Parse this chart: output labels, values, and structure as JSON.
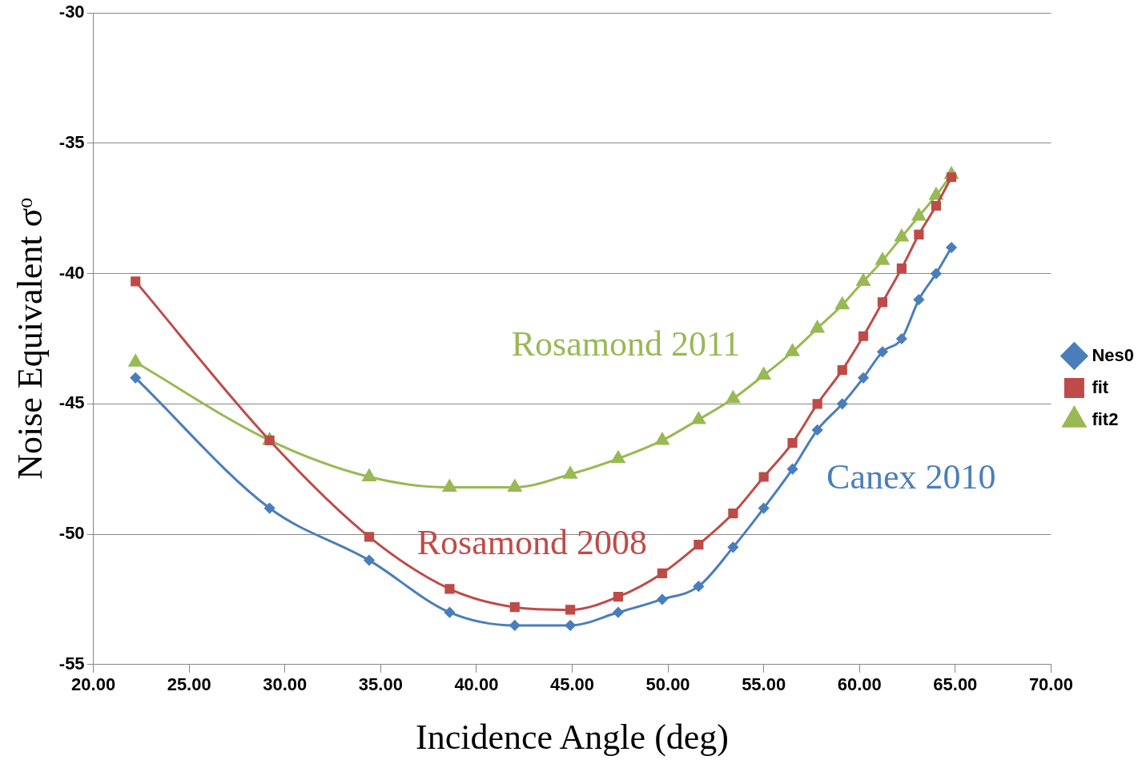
{
  "chart_data": {
    "type": "line",
    "xlabel": "Incidence Angle (deg)",
    "ylabel": "Noise Equivalent σᵒ",
    "x": [
      22.2,
      29.2,
      34.4,
      38.6,
      42.0,
      44.9,
      47.4,
      49.7,
      51.6,
      53.4,
      55.0,
      56.5,
      57.8,
      59.1,
      60.2,
      61.2,
      62.2,
      63.1,
      64.0,
      64.8
    ],
    "series": [
      {
        "name": "Nes0",
        "color": "#4a7ebb",
        "marker": "diamond",
        "values": [
          -44.0,
          -49.0,
          -51.0,
          -53.0,
          -53.5,
          -53.5,
          -53.0,
          -52.5,
          -52.0,
          -50.5,
          -49.0,
          -47.5,
          -46.0,
          -45.0,
          -44.0,
          -43.0,
          -42.5,
          -41.0,
          -40.0,
          -39.0
        ]
      },
      {
        "name": "fit",
        "color": "#be4b48",
        "marker": "square",
        "values": [
          -40.3,
          -46.4,
          -50.1,
          -52.1,
          -52.8,
          -52.9,
          -52.4,
          -51.5,
          -50.4,
          -49.2,
          -47.8,
          -46.5,
          -45.0,
          -43.7,
          -42.4,
          -41.1,
          -39.8,
          -38.5,
          -37.4,
          -36.3
        ]
      },
      {
        "name": "fit2",
        "color": "#98b954",
        "marker": "triangle",
        "values": [
          -43.4,
          -46.4,
          -47.8,
          -48.2,
          -48.2,
          -47.7,
          -47.1,
          -46.4,
          -45.6,
          -44.8,
          -43.9,
          -43.0,
          -42.1,
          -41.2,
          -40.3,
          -39.5,
          -38.6,
          -37.8,
          -37.0,
          -36.2
        ]
      }
    ],
    "annotations": [
      "Canex 2010",
      "Rosamond 2008",
      "Rosamond 2011"
    ],
    "xlim": [
      20,
      70
    ],
    "xticks": [
      {
        "value": 20,
        "label": "20.00"
      },
      {
        "value": 25,
        "label": "25.00"
      },
      {
        "value": 30,
        "label": "30.00"
      },
      {
        "value": 35,
        "label": "35.00"
      },
      {
        "value": 40,
        "label": "40.00"
      },
      {
        "value": 45,
        "label": "45.00"
      },
      {
        "value": 50,
        "label": "50.00"
      },
      {
        "value": 55,
        "label": "55.00"
      },
      {
        "value": 60,
        "label": "60.00"
      },
      {
        "value": 65,
        "label": "65.00"
      },
      {
        "value": 70,
        "label": "70.00"
      }
    ],
    "ylim": [
      -55,
      -30
    ],
    "yticks": [
      -55,
      -50,
      -45,
      -40,
      -35,
      -30
    ],
    "grid": "y",
    "legend": "right",
    "line_style": "solid"
  }
}
